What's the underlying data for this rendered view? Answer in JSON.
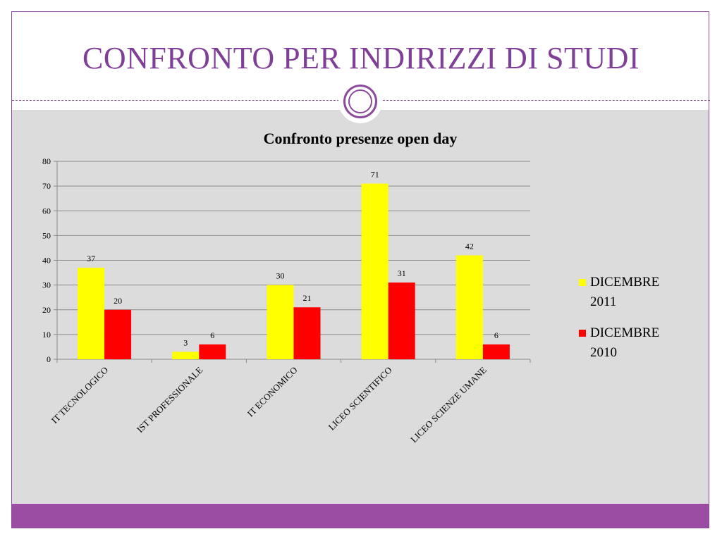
{
  "slide": {
    "title": "CONFRONTO PER INDIRIZZI DI STUDI"
  },
  "colors": {
    "accent": "#8b4a9c",
    "title": "#7e3f97",
    "band": "#9b4da3",
    "panel": "#dcdcdc"
  },
  "chart_data": {
    "type": "bar",
    "title": "Confronto presenze  open day",
    "categories": [
      "IT TECNOLOGICO",
      "IST PROFESSIONALE",
      "IT ECONOMICO",
      "LICEO SCIENTIFICO",
      "LICEO SCIENZE UMANE"
    ],
    "series": [
      {
        "name": "DICEMBRE 2011",
        "values": [
          37,
          3,
          30,
          71,
          42
        ],
        "color": "#ffff00"
      },
      {
        "name": "DICEMBRE 2010",
        "values": [
          20,
          6,
          21,
          31,
          6
        ],
        "color": "#ff0000"
      }
    ],
    "ylim": [
      0,
      80
    ],
    "yticks": [
      "0",
      "10",
      "20",
      "30",
      "40",
      "50",
      "60",
      "70",
      "80"
    ],
    "grid": true,
    "legend": "right"
  }
}
